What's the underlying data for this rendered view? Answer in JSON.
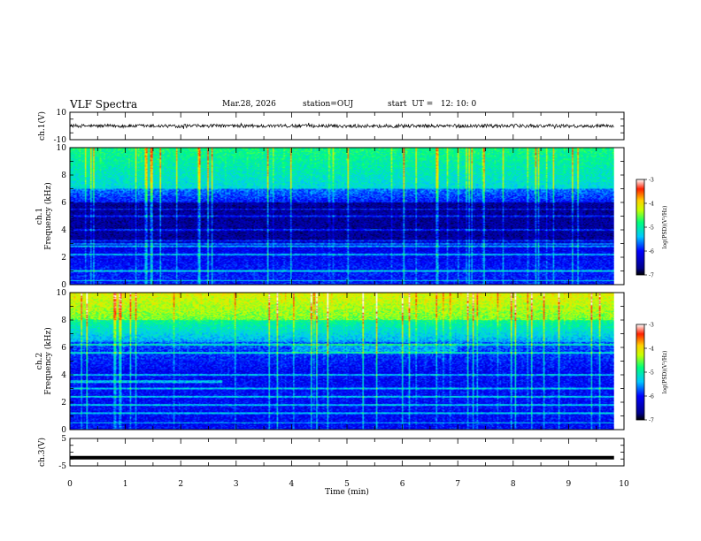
{
  "header": {
    "title": "VLF Spectra",
    "date": "Mar.28, 2026",
    "station": "station=OUJ",
    "start_time": "start  UT =   12: 10: 0"
  },
  "chart_data": [
    {
      "type": "line",
      "name": "ch1-waveform",
      "ylabel": "ch.1(V)",
      "ylim": [
        -10,
        10
      ],
      "y_ticklabels": [
        "10",
        "-10"
      ],
      "x_range_min": [
        0,
        9.82
      ],
      "description_values": "noisy waveform centred at 0 V, amplitude approx +/-1.5 V"
    },
    {
      "type": "heatmap",
      "name": "ch1-spectrogram",
      "ylabel_channel": "ch.1",
      "ylabel": "Frequency (kHz)",
      "ylim": [
        0,
        10
      ],
      "y_ticklabels": [
        "0",
        "2",
        "4",
        "6",
        "8",
        "10"
      ],
      "x_range_min": [
        0,
        9.82
      ],
      "colorbar": {
        "label": "log(PSD)(V²/Hz)",
        "range": [
          -7,
          -3
        ],
        "ticklabels": [
          "-3",
          "-4",
          "-5",
          "-6",
          "-7"
        ]
      },
      "features": {
        "bright_band_khz": [
          7,
          10
        ],
        "quiet_band_khz": [
          3,
          5.5
        ],
        "narrowband_lines_khz": [
          5.0,
          5.5,
          4.0,
          3.2,
          3.0,
          2.8,
          2.2,
          1.0,
          0.3
        ]
      }
    },
    {
      "type": "heatmap",
      "name": "ch2-spectrogram",
      "ylabel_channel": "ch.2",
      "ylabel": "Frequency (kHz)",
      "ylim": [
        0,
        10
      ],
      "y_ticklabels": [
        "0",
        "2",
        "4",
        "6",
        "8",
        "10"
      ],
      "x_range_min": [
        0,
        9.82
      ],
      "colorbar": {
        "label": "log(PSD)(V²/Hz)",
        "range": [
          -7,
          -3
        ],
        "ticklabels": [
          "-3",
          "-4",
          "-5",
          "-6",
          "-7"
        ]
      },
      "features": {
        "bright_band_khz": [
          8,
          10
        ],
        "emission_band_khz": [
          3.4,
          3.6
        ],
        "emission_band_end_min": 2.75,
        "narrowband_lines_khz": [
          6.2,
          5.6,
          4.0,
          3.0,
          2.4,
          1.8,
          1.2,
          0.5
        ]
      }
    },
    {
      "type": "line",
      "name": "ch3-waveform",
      "ylabel": "ch.3(V)",
      "ylim": [
        -5,
        5
      ],
      "y_ticklabels": [
        "5",
        "-5"
      ],
      "x_range_min": [
        0,
        9.82
      ],
      "description_values": "constant level at approximately -2 V"
    }
  ],
  "xaxis": {
    "label": "Time (min)",
    "range": [
      0,
      10
    ],
    "ticklabels": [
      "0",
      "1",
      "2",
      "3",
      "4",
      "5",
      "6",
      "7",
      "8",
      "9",
      "10"
    ]
  }
}
